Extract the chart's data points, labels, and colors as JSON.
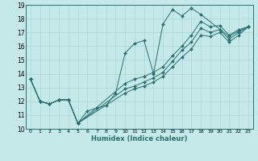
{
  "xlabel": "Humidex (Indice chaleur)",
  "background_color": "#c5e8e8",
  "grid_color": "#afd4d4",
  "line_color": "#2a7070",
  "xlim": [
    -0.5,
    23.5
  ],
  "ylim": [
    10,
    19
  ],
  "yticks": [
    10,
    11,
    12,
    13,
    14,
    15,
    16,
    17,
    18,
    19
  ],
  "series": [
    {
      "x": [
        0,
        1,
        2,
        3,
        4,
        5,
        6,
        7,
        8,
        9,
        10,
        11,
        12,
        13,
        14,
        15,
        16,
        17,
        18,
        21,
        22,
        23
      ],
      "y": [
        13.6,
        12.0,
        11.8,
        12.1,
        12.1,
        10.4,
        11.3,
        11.5,
        11.7,
        12.6,
        15.5,
        16.2,
        16.4,
        14.0,
        17.6,
        18.65,
        18.2,
        18.75,
        18.3,
        16.7,
        17.1,
        17.4
      ]
    },
    {
      "x": [
        0,
        1,
        2,
        3,
        4,
        5,
        10,
        11,
        12,
        13,
        14,
        15,
        16,
        17,
        18,
        19,
        20,
        21,
        22,
        23
      ],
      "y": [
        13.6,
        12.0,
        11.8,
        12.1,
        12.1,
        10.4,
        13.3,
        13.6,
        13.8,
        14.1,
        14.5,
        15.3,
        16.0,
        16.8,
        17.8,
        17.4,
        17.5,
        16.8,
        17.2,
        17.4
      ]
    },
    {
      "x": [
        0,
        1,
        2,
        3,
        4,
        5,
        10,
        11,
        12,
        13,
        14,
        15,
        16,
        17,
        18,
        19,
        20,
        21,
        22,
        23
      ],
      "y": [
        13.6,
        12.0,
        11.8,
        12.1,
        12.1,
        10.4,
        12.9,
        13.1,
        13.4,
        13.7,
        14.1,
        14.9,
        15.7,
        16.3,
        17.3,
        17.0,
        17.2,
        16.5,
        17.0,
        17.4
      ]
    },
    {
      "x": [
        0,
        1,
        2,
        3,
        4,
        5,
        10,
        11,
        12,
        13,
        14,
        15,
        16,
        17,
        18,
        19,
        20,
        21,
        22,
        23
      ],
      "y": [
        13.6,
        12.0,
        11.8,
        12.1,
        12.1,
        10.4,
        12.6,
        12.9,
        13.1,
        13.4,
        13.8,
        14.5,
        15.2,
        15.8,
        16.8,
        16.7,
        17.0,
        16.3,
        16.8,
        17.4
      ]
    }
  ]
}
